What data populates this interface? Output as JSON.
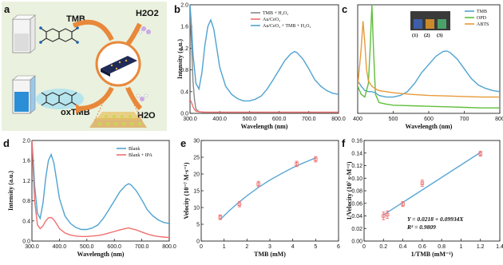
{
  "panels": {
    "a": {
      "label": "a",
      "tmb": "TMB",
      "h2o2": "H2O2",
      "oxtmb": "oxTMB",
      "h2o": "H2O"
    },
    "b": {
      "label": "b"
    },
    "c": {
      "label": "c",
      "vial_labels": [
        "(1)",
        "(2)",
        "(3)"
      ]
    },
    "d": {
      "label": "d"
    },
    "e": {
      "label": "e"
    },
    "f": {
      "label": "f",
      "equation": "Y = 0.0218 + 0.09934X",
      "r2": "R² = 0.9809"
    }
  },
  "colors": {
    "blue": "#4fa3d1",
    "red": "#f07070",
    "gray": "#888888",
    "green": "#5fbf3a",
    "orange": "#e79a3a",
    "fit": "#5aa8d8",
    "panel_a_bg": "#eaf1de",
    "arrow": "#e8883a"
  },
  "chart_data": [
    {
      "id": "b",
      "type": "line",
      "xlabel": "Wavelength (nm)",
      "ylabel": "Intensity (a.u.)",
      "xlim": [
        300,
        800
      ],
      "ylim": [
        0,
        2.0
      ],
      "xticks": [
        300,
        400,
        500,
        600,
        700,
        800
      ],
      "yticks": [
        0.0,
        0.4,
        0.8,
        1.2,
        1.6,
        2.0
      ],
      "legend_position": "top-right",
      "series": [
        {
          "name": "TMB + H₂O₂",
          "color": "gray",
          "x": [
            300,
            305,
            310,
            315,
            320,
            330,
            340,
            360,
            400,
            500,
            600,
            700,
            800
          ],
          "y": [
            1.9,
            1.3,
            0.6,
            0.25,
            0.08,
            0.03,
            0.02,
            0.02,
            0.02,
            0.02,
            0.02,
            0.02,
            0.02
          ]
        },
        {
          "name": "Au/CeO₂",
          "color": "red",
          "x": [
            300,
            305,
            310,
            315,
            320,
            330,
            350,
            400,
            500,
            600,
            700,
            800
          ],
          "y": [
            0.25,
            0.2,
            0.12,
            0.07,
            0.04,
            0.03,
            0.02,
            0.02,
            0.02,
            0.02,
            0.02,
            0.02
          ]
        },
        {
          "name": "Au/CeO₂ + TMB + H₂O₂",
          "color": "blue",
          "x": [
            300,
            305,
            310,
            320,
            330,
            340,
            350,
            360,
            370,
            380,
            390,
            400,
            420,
            440,
            460,
            480,
            500,
            520,
            540,
            560,
            580,
            600,
            620,
            640,
            652,
            660,
            680,
            700,
            720,
            740,
            760,
            780,
            800
          ],
          "y": [
            2.0,
            1.6,
            1.1,
            0.55,
            0.45,
            0.75,
            1.25,
            1.6,
            1.72,
            1.55,
            1.2,
            0.85,
            0.5,
            0.35,
            0.27,
            0.23,
            0.23,
            0.26,
            0.32,
            0.45,
            0.62,
            0.8,
            0.98,
            1.1,
            1.14,
            1.12,
            1.0,
            0.82,
            0.62,
            0.5,
            0.42,
            0.37,
            0.35
          ]
        }
      ]
    },
    {
      "id": "c",
      "type": "line",
      "xlabel": "Wavelength (nm)",
      "ylabel": "",
      "xlim": [
        400,
        800
      ],
      "ylim": [
        0,
        2.0
      ],
      "xticks": [
        400,
        500,
        600,
        700,
        800
      ],
      "yticks": [],
      "legend_position": "top-right",
      "series": [
        {
          "name": "TMB",
          "color": "blue",
          "x": [
            400,
            410,
            420,
            430,
            440,
            450,
            460,
            480,
            500,
            520,
            540,
            560,
            580,
            600,
            620,
            640,
            650,
            660,
            680,
            700,
            720,
            740,
            760,
            780,
            800
          ],
          "y": [
            0.6,
            0.5,
            0.42,
            0.4,
            0.4,
            0.38,
            0.33,
            0.3,
            0.3,
            0.33,
            0.4,
            0.55,
            0.75,
            0.9,
            1.05,
            1.14,
            1.15,
            1.12,
            1.0,
            0.82,
            0.64,
            0.52,
            0.46,
            0.42,
            0.4
          ]
        },
        {
          "name": "OPD",
          "color": "green",
          "x": [
            400,
            410,
            420,
            430,
            435,
            440,
            445,
            450,
            460,
            480,
            500,
            550,
            600,
            650,
            700,
            750,
            800
          ],
          "y": [
            0.5,
            0.35,
            0.3,
            0.55,
            1.2,
            2.0,
            1.1,
            0.35,
            0.2,
            0.17,
            0.15,
            0.14,
            0.13,
            0.12,
            0.11,
            0.1,
            0.1
          ]
        },
        {
          "name": "ABTS",
          "color": "orange",
          "x": [
            400,
            410,
            415,
            420,
            425,
            430,
            440,
            450,
            460,
            480,
            500,
            550,
            600,
            650,
            700,
            750,
            800
          ],
          "y": [
            0.5,
            1.2,
            1.7,
            1.3,
            0.8,
            0.6,
            0.5,
            0.45,
            0.42,
            0.4,
            0.38,
            0.35,
            0.33,
            0.32,
            0.31,
            0.3,
            0.3
          ]
        }
      ]
    },
    {
      "id": "d",
      "type": "line",
      "xlabel": "Wavelength (nm)",
      "ylabel": "Intensity (a.u.)",
      "xlim": [
        300,
        800
      ],
      "ylim": [
        0,
        2.0
      ],
      "xticks": [
        300,
        400,
        500,
        600,
        700,
        800
      ],
      "yticks": [
        0.0,
        0.4,
        0.8,
        1.2,
        1.6,
        2.0
      ],
      "legend_position": "top-right",
      "series": [
        {
          "name": "Blank",
          "color": "blue",
          "x": [
            300,
            305,
            310,
            320,
            330,
            340,
            350,
            360,
            370,
            380,
            390,
            400,
            420,
            440,
            460,
            480,
            500,
            520,
            540,
            560,
            580,
            600,
            620,
            640,
            652,
            660,
            680,
            700,
            720,
            740,
            760,
            780,
            800
          ],
          "y": [
            2.0,
            1.6,
            1.1,
            0.55,
            0.45,
            0.75,
            1.25,
            1.6,
            1.72,
            1.55,
            1.2,
            0.85,
            0.5,
            0.35,
            0.27,
            0.23,
            0.23,
            0.26,
            0.32,
            0.45,
            0.62,
            0.8,
            0.98,
            1.1,
            1.14,
            1.12,
            1.0,
            0.82,
            0.62,
            0.5,
            0.42,
            0.37,
            0.35
          ]
        },
        {
          "name": "Blank + IPA",
          "color": "red",
          "x": [
            300,
            305,
            310,
            320,
            330,
            340,
            350,
            360,
            370,
            380,
            390,
            400,
            420,
            440,
            460,
            480,
            500,
            520,
            540,
            560,
            580,
            600,
            620,
            640,
            652,
            660,
            680,
            700,
            720,
            740,
            760,
            780,
            800
          ],
          "y": [
            2.0,
            1.4,
            0.8,
            0.32,
            0.25,
            0.3,
            0.4,
            0.46,
            0.47,
            0.42,
            0.34,
            0.25,
            0.16,
            0.12,
            0.1,
            0.09,
            0.09,
            0.1,
            0.11,
            0.13,
            0.16,
            0.19,
            0.22,
            0.25,
            0.26,
            0.25,
            0.22,
            0.18,
            0.14,
            0.11,
            0.09,
            0.08,
            0.07
          ]
        }
      ]
    },
    {
      "id": "e",
      "type": "scatter",
      "xlabel": "TMB (mM)",
      "ylabel": "Velocity (10⁻⁷ M·s⁻¹)",
      "xlim": [
        0,
        6
      ],
      "ylim": [
        0,
        30
      ],
      "xticks": [
        0,
        1,
        2,
        3,
        4,
        5,
        6
      ],
      "yticks": [
        0,
        5,
        10,
        15,
        20,
        25,
        30
      ],
      "points": {
        "x": [
          0.83,
          1.67,
          2.5,
          4.17,
          5.0
        ],
        "y": [
          7.1,
          11.0,
          17.0,
          23.0,
          24.4
        ],
        "err": [
          0.7,
          0.8,
          0.8,
          0.8,
          0.8
        ]
      },
      "fit": {
        "x": [
          0.83,
          1.2,
          1.6,
          2.0,
          2.5,
          3.0,
          3.5,
          4.0,
          4.5,
          5.0
        ],
        "y": [
          6.4,
          8.9,
          11.3,
          13.5,
          16.0,
          18.2,
          20.1,
          21.9,
          23.4,
          24.8
        ]
      }
    },
    {
      "id": "f",
      "type": "scatter",
      "xlabel": "1/TMB (mM⁻¹)",
      "ylabel": "1/Velocity (10⁷ s·M⁻¹)",
      "xlim": [
        0,
        1.4
      ],
      "ylim": [
        0,
        0.16
      ],
      "xticks": [
        0.0,
        0.2,
        0.4,
        0.6,
        0.8,
        1.0,
        1.2,
        1.4
      ],
      "yticks": [
        0.0,
        0.02,
        0.04,
        0.06,
        0.08,
        0.1,
        0.12,
        0.14,
        0.16
      ],
      "points": {
        "x": [
          0.2,
          0.24,
          0.4,
          0.6,
          1.2
        ],
        "y": [
          0.04,
          0.042,
          0.059,
          0.092,
          0.139
        ],
        "err": [
          0.006,
          0.006,
          0.004,
          0.005,
          0.004
        ]
      },
      "fit": {
        "x": [
          0.2,
          1.2
        ],
        "y": [
          0.0417,
          0.141
        ]
      }
    }
  ]
}
